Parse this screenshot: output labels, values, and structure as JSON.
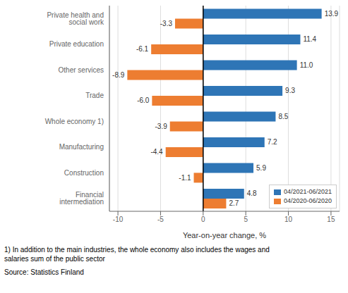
{
  "chart_data": {
    "type": "bar",
    "orientation": "horizontal",
    "categories": [
      "Financial intermediation",
      "Construction",
      "Manufacturing",
      "Whole economy 1)",
      "Trade",
      "Other services",
      "Private education",
      "Private health and social work"
    ],
    "series": [
      {
        "name": "04/2021-06/2021",
        "color": "#2E75B6",
        "values": [
          4.8,
          5.9,
          7.2,
          8.5,
          9.3,
          11.0,
          11.4,
          13.9
        ],
        "value_labels": [
          "4.8",
          "5.9",
          "7.2",
          "8.5",
          "9.3",
          "11.0",
          "11.4",
          "13.9"
        ]
      },
      {
        "name": "04/2020-06/2020",
        "color": "#ED7D31",
        "values": [
          2.7,
          -1.1,
          -4.4,
          -3.9,
          -6.0,
          -8.9,
          -6.1,
          -3.3
        ],
        "value_labels": [
          "2.7",
          "-1.1",
          "-4.4",
          "-3.9",
          "-6.0",
          "-8.9",
          "-6.1",
          "-3.3"
        ]
      }
    ],
    "xlabel": "Year-on-year change, %",
    "xlim": [
      -11,
      16
    ],
    "xticks": [
      -10,
      -5,
      0,
      5,
      10,
      15
    ],
    "grid": true,
    "legend": "lower right",
    "data_labels": true,
    "annotations": [
      "1) In addition to the main industries, the whole economy also includes the wages and\nsalaries sum of the public sector",
      "Source: Statistics Finland"
    ]
  }
}
